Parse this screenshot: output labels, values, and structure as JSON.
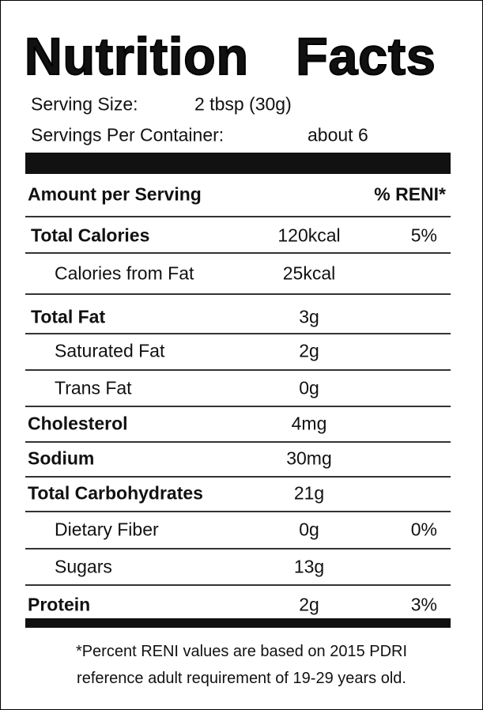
{
  "title": "Nutrition Facts",
  "serving_size": {
    "label": "Serving Size:",
    "value": "2 tbsp (30g)"
  },
  "servings_per_container": {
    "label": "Servings Per Container:",
    "value": "about 6"
  },
  "header": {
    "amount": "Amount per Serving",
    "percent": "% RENI*"
  },
  "rows": [
    {
      "name": "Total Calories",
      "amount": "120kcal",
      "percent": "5%",
      "bold": true
    },
    {
      "name": "Calories from Fat",
      "amount": "25kcal",
      "indent": true
    },
    {
      "name": "Total Fat",
      "amount": "3g",
      "bold": true
    },
    {
      "name": "Saturated Fat",
      "amount": "2g",
      "indent": true
    },
    {
      "name": "Trans Fat",
      "amount": "0g",
      "indent": true
    },
    {
      "name": "Cholesterol",
      "amount": "4mg",
      "bold": true
    },
    {
      "name": "Sodium",
      "amount": "30mg",
      "bold": true
    },
    {
      "name": "Total Carbohydrates",
      "amount": "21g",
      "bold": true
    },
    {
      "name": "Dietary Fiber",
      "amount": "0g",
      "percent": "0%",
      "indent": true
    },
    {
      "name": "Sugars",
      "amount": "13g",
      "indent": true
    },
    {
      "name": "Protein",
      "amount": "2g",
      "percent": "3%",
      "bold": true
    }
  ],
  "footnote": [
    "*Percent RENI values are based on 2015 PDRI",
    "reference adult requirement of 19-29 years old."
  ]
}
